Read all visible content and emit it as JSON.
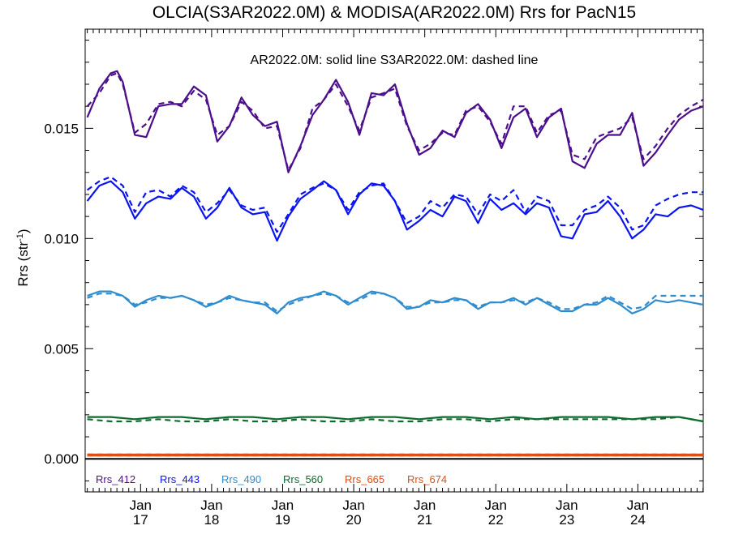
{
  "chart_data": {
    "type": "line",
    "title": "OLCIA(S3AR2022.0M) & MODISA(AR2022.0M)  Rrs for PacN15",
    "annotation": "AR2022.0M: solid line   S3AR2022.0M: dashed line",
    "ylabel": "Rrs (str",
    "ylabel_sup": "-1",
    "ylabel_close": ")",
    "xlabel": "",
    "x_unit": "year (20xx, monthly)",
    "xlim": [
      2016.22,
      2024.92
    ],
    "ylim": [
      -0.0015,
      0.0195
    ],
    "yticks": [
      0.0,
      0.005,
      0.01,
      0.015
    ],
    "ytick_labels": [
      "0.000",
      "0.005",
      "0.010",
      "0.015"
    ],
    "xticks": [
      {
        "x": 2017,
        "month": "Jan",
        "year": "17"
      },
      {
        "x": 2018,
        "month": "Jan",
        "year": "18"
      },
      {
        "x": 2019,
        "month": "Jan",
        "year": "19"
      },
      {
        "x": 2020,
        "month": "Jan",
        "year": "20"
      },
      {
        "x": 2021,
        "month": "Jan",
        "year": "21"
      },
      {
        "x": 2022,
        "month": "Jan",
        "year": "22"
      },
      {
        "x": 2023,
        "month": "Jan",
        "year": "23"
      },
      {
        "x": 2024,
        "month": "Jan",
        "year": "24"
      }
    ],
    "grid": false,
    "legend_position": "bottom-left",
    "series": [
      {
        "name": "Rrs_412",
        "color": "#4b0f8c",
        "solid": {
          "x": [
            2016.25,
            2016.42,
            2016.58,
            2016.67,
            2016.75,
            2016.92,
            2017.08,
            2017.25,
            2017.42,
            2017.58,
            2017.75,
            2017.92,
            2018.08,
            2018.25,
            2018.42,
            2018.58,
            2018.75,
            2018.92,
            2019.08,
            2019.25,
            2019.42,
            2019.58,
            2019.75,
            2019.92,
            2020.08,
            2020.25,
            2020.42,
            2020.58,
            2020.75,
            2020.92,
            2021.08,
            2021.25,
            2021.42,
            2021.58,
            2021.75,
            2021.92,
            2022.08,
            2022.25,
            2022.42,
            2022.58,
            2022.75,
            2022.92,
            2023.08,
            2023.25,
            2023.42,
            2023.58,
            2023.75,
            2023.92,
            2024.08,
            2024.25,
            2024.42,
            2024.58,
            2024.75,
            2024.92
          ],
          "y": [
            0.0155,
            0.0168,
            0.0175,
            0.0176,
            0.0171,
            0.0147,
            0.0146,
            0.016,
            0.0161,
            0.0161,
            0.0169,
            0.0165,
            0.0144,
            0.0151,
            0.0164,
            0.0156,
            0.0151,
            0.0153,
            0.013,
            0.0142,
            0.0156,
            0.0163,
            0.0172,
            0.0162,
            0.0147,
            0.0166,
            0.0165,
            0.017,
            0.0152,
            0.0138,
            0.0141,
            0.0149,
            0.0146,
            0.0157,
            0.0161,
            0.0154,
            0.0141,
            0.0155,
            0.0159,
            0.0146,
            0.0155,
            0.0159,
            0.0135,
            0.0132,
            0.0143,
            0.0147,
            0.0147,
            0.0157,
            0.0133,
            0.0139,
            0.0147,
            0.0154,
            0.0158,
            0.016
          ]
        },
        "dashed": {
          "x": [
            2016.25,
            2016.42,
            2016.58,
            2016.67,
            2016.75,
            2016.92,
            2017.08,
            2017.25,
            2017.42,
            2017.58,
            2017.75,
            2017.92,
            2018.08,
            2018.25,
            2018.42,
            2018.58,
            2018.75,
            2018.92,
            2019.08,
            2019.25,
            2019.42,
            2019.58,
            2019.75,
            2019.92,
            2020.08,
            2020.25,
            2020.42,
            2020.58,
            2020.75,
            2020.92,
            2021.08,
            2021.25,
            2021.42,
            2021.58,
            2021.75,
            2021.92,
            2022.08,
            2022.25,
            2022.42,
            2022.58,
            2022.75,
            2022.92,
            2023.08,
            2023.25,
            2023.42,
            2023.58,
            2023.75,
            2023.92,
            2024.08,
            2024.25,
            2024.42,
            2024.58,
            2024.75,
            2024.92
          ],
          "y": [
            0.016,
            0.0166,
            0.0174,
            0.0175,
            0.017,
            0.0148,
            0.0152,
            0.0161,
            0.0162,
            0.016,
            0.0167,
            0.0163,
            0.0147,
            0.0151,
            0.0162,
            0.0158,
            0.015,
            0.0151,
            0.0131,
            0.0141,
            0.0159,
            0.0163,
            0.017,
            0.016,
            0.0149,
            0.0164,
            0.0166,
            0.0168,
            0.0151,
            0.014,
            0.0143,
            0.0148,
            0.0147,
            0.0158,
            0.016,
            0.0153,
            0.0143,
            0.016,
            0.016,
            0.0148,
            0.0156,
            0.0158,
            0.0138,
            0.0136,
            0.0146,
            0.0148,
            0.015,
            0.0155,
            0.0136,
            0.0142,
            0.015,
            0.0156,
            0.016,
            0.0163
          ]
        }
      },
      {
        "name": "Rrs_443",
        "color": "#0a14f0",
        "solid": {
          "x": [
            2016.25,
            2016.42,
            2016.58,
            2016.75,
            2016.92,
            2017.08,
            2017.25,
            2017.42,
            2017.58,
            2017.75,
            2017.92,
            2018.08,
            2018.25,
            2018.42,
            2018.58,
            2018.75,
            2018.92,
            2019.08,
            2019.25,
            2019.42,
            2019.58,
            2019.75,
            2019.92,
            2020.08,
            2020.25,
            2020.42,
            2020.58,
            2020.75,
            2020.92,
            2021.08,
            2021.25,
            2021.42,
            2021.58,
            2021.75,
            2021.92,
            2022.08,
            2022.25,
            2022.42,
            2022.58,
            2022.75,
            2022.92,
            2023.08,
            2023.25,
            2023.42,
            2023.58,
            2023.75,
            2023.92,
            2024.08,
            2024.25,
            2024.42,
            2024.58,
            2024.75,
            2024.92
          ],
          "y": [
            0.0117,
            0.0124,
            0.0126,
            0.0121,
            0.0109,
            0.0116,
            0.0119,
            0.0118,
            0.0123,
            0.0119,
            0.0109,
            0.0114,
            0.0123,
            0.0114,
            0.0111,
            0.0112,
            0.0099,
            0.011,
            0.0118,
            0.0122,
            0.0126,
            0.0122,
            0.0111,
            0.012,
            0.0125,
            0.0124,
            0.0117,
            0.0104,
            0.0108,
            0.0113,
            0.011,
            0.0119,
            0.0117,
            0.0107,
            0.0118,
            0.0113,
            0.0116,
            0.0111,
            0.0116,
            0.0114,
            0.0101,
            0.01,
            0.0111,
            0.0112,
            0.0117,
            0.011,
            0.01,
            0.0104,
            0.0111,
            0.011,
            0.0114,
            0.0115,
            0.0113
          ]
        },
        "dashed": {
          "x": [
            2016.25,
            2016.42,
            2016.58,
            2016.75,
            2016.92,
            2017.08,
            2017.25,
            2017.42,
            2017.58,
            2017.75,
            2017.92,
            2018.08,
            2018.25,
            2018.42,
            2018.58,
            2018.75,
            2018.92,
            2019.08,
            2019.25,
            2019.42,
            2019.58,
            2019.75,
            2019.92,
            2020.08,
            2020.25,
            2020.42,
            2020.58,
            2020.75,
            2020.92,
            2021.08,
            2021.25,
            2021.42,
            2021.58,
            2021.75,
            2021.92,
            2022.08,
            2022.25,
            2022.42,
            2022.58,
            2022.75,
            2022.92,
            2023.08,
            2023.25,
            2023.42,
            2023.58,
            2023.75,
            2023.92,
            2024.08,
            2024.25,
            2024.42,
            2024.58,
            2024.75,
            2024.92
          ],
          "y": [
            0.0122,
            0.0126,
            0.0128,
            0.0124,
            0.0112,
            0.0121,
            0.0122,
            0.0119,
            0.0124,
            0.0121,
            0.0112,
            0.0116,
            0.0122,
            0.0115,
            0.0113,
            0.0114,
            0.0103,
            0.0111,
            0.012,
            0.0123,
            0.0125,
            0.0122,
            0.0113,
            0.0121,
            0.0124,
            0.0125,
            0.0117,
            0.0107,
            0.011,
            0.0117,
            0.0114,
            0.012,
            0.0119,
            0.0111,
            0.012,
            0.0117,
            0.0122,
            0.0112,
            0.0119,
            0.0117,
            0.0106,
            0.0106,
            0.0113,
            0.0115,
            0.0119,
            0.0114,
            0.0104,
            0.0106,
            0.0115,
            0.0118,
            0.012,
            0.0121,
            0.0121
          ]
        }
      },
      {
        "name": "Rrs_490",
        "color": "#2e8ccf",
        "solid": {
          "x": [
            2016.25,
            2016.42,
            2016.58,
            2016.75,
            2016.92,
            2017.08,
            2017.25,
            2017.42,
            2017.58,
            2017.75,
            2017.92,
            2018.08,
            2018.25,
            2018.42,
            2018.58,
            2018.75,
            2018.92,
            2019.08,
            2019.25,
            2019.42,
            2019.58,
            2019.75,
            2019.92,
            2020.08,
            2020.25,
            2020.42,
            2020.58,
            2020.75,
            2020.92,
            2021.08,
            2021.25,
            2021.42,
            2021.58,
            2021.75,
            2021.92,
            2022.08,
            2022.25,
            2022.42,
            2022.58,
            2022.75,
            2022.92,
            2023.08,
            2023.25,
            2023.42,
            2023.58,
            2023.75,
            2023.92,
            2024.08,
            2024.25,
            2024.42,
            2024.58,
            2024.75,
            2024.92
          ],
          "y": [
            0.0074,
            0.0076,
            0.0076,
            0.0074,
            0.0069,
            0.0072,
            0.0074,
            0.0073,
            0.0074,
            0.0072,
            0.0069,
            0.0071,
            0.0074,
            0.0072,
            0.0071,
            0.007,
            0.0066,
            0.0071,
            0.0073,
            0.0074,
            0.0076,
            0.0074,
            0.007,
            0.0073,
            0.0076,
            0.0075,
            0.0073,
            0.0068,
            0.0069,
            0.0072,
            0.0071,
            0.0073,
            0.0072,
            0.0068,
            0.0071,
            0.0071,
            0.0073,
            0.007,
            0.0073,
            0.007,
            0.0067,
            0.0067,
            0.007,
            0.007,
            0.0073,
            0.007,
            0.0066,
            0.0068,
            0.0072,
            0.0071,
            0.0072,
            0.0071,
            0.007
          ]
        },
        "dashed": {
          "x": [
            2016.25,
            2016.42,
            2016.58,
            2016.75,
            2016.92,
            2017.08,
            2017.25,
            2017.42,
            2017.58,
            2017.75,
            2017.92,
            2018.08,
            2018.25,
            2018.42,
            2018.58,
            2018.75,
            2018.92,
            2019.08,
            2019.25,
            2019.42,
            2019.58,
            2019.75,
            2019.92,
            2020.08,
            2020.25,
            2020.42,
            2020.58,
            2020.75,
            2020.92,
            2021.08,
            2021.25,
            2021.42,
            2021.58,
            2021.75,
            2021.92,
            2022.08,
            2022.25,
            2022.42,
            2022.58,
            2022.75,
            2022.92,
            2023.08,
            2023.25,
            2023.42,
            2023.58,
            2023.75,
            2023.92,
            2024.08,
            2024.25,
            2024.42,
            2024.58,
            2024.75,
            2024.92
          ],
          "y": [
            0.0073,
            0.0075,
            0.0075,
            0.0074,
            0.007,
            0.0071,
            0.0073,
            0.0073,
            0.0074,
            0.0072,
            0.007,
            0.0071,
            0.0073,
            0.0072,
            0.0071,
            0.0071,
            0.0067,
            0.007,
            0.0072,
            0.0074,
            0.0075,
            0.0074,
            0.0071,
            0.0072,
            0.0075,
            0.0075,
            0.0073,
            0.0069,
            0.0069,
            0.0071,
            0.0071,
            0.0072,
            0.0072,
            0.0069,
            0.0071,
            0.0071,
            0.0072,
            0.0071,
            0.0073,
            0.0071,
            0.0068,
            0.0068,
            0.007,
            0.0071,
            0.0074,
            0.0071,
            0.0068,
            0.0069,
            0.0074,
            0.0074,
            0.0074,
            0.0074,
            0.0074
          ]
        }
      },
      {
        "name": "Rrs_560",
        "color": "#0d6b2e",
        "solid": {
          "x": [
            2016.25,
            2016.58,
            2016.92,
            2017.25,
            2017.58,
            2017.92,
            2018.25,
            2018.58,
            2018.92,
            2019.25,
            2019.58,
            2019.92,
            2020.25,
            2020.58,
            2020.92,
            2021.25,
            2021.58,
            2021.92,
            2022.25,
            2022.58,
            2022.92,
            2023.25,
            2023.58,
            2023.92,
            2024.25,
            2024.58,
            2024.92
          ],
          "y": [
            0.0019,
            0.0019,
            0.0018,
            0.0019,
            0.0019,
            0.0018,
            0.0019,
            0.0019,
            0.0018,
            0.0019,
            0.0019,
            0.0018,
            0.0019,
            0.0019,
            0.0018,
            0.0019,
            0.0019,
            0.0018,
            0.0019,
            0.0018,
            0.0019,
            0.0019,
            0.0019,
            0.0018,
            0.0019,
            0.0019,
            0.0017
          ]
        },
        "dashed": {
          "x": [
            2016.25,
            2016.58,
            2016.92,
            2017.25,
            2017.58,
            2017.92,
            2018.25,
            2018.58,
            2018.92,
            2019.25,
            2019.58,
            2019.92,
            2020.25,
            2020.58,
            2020.92,
            2021.25,
            2021.58,
            2021.92,
            2022.25,
            2022.58,
            2022.92,
            2023.25,
            2023.58,
            2023.92,
            2024.25,
            2024.58,
            2024.92
          ],
          "y": [
            0.0018,
            0.0017,
            0.0017,
            0.0018,
            0.0017,
            0.0017,
            0.0018,
            0.0017,
            0.0017,
            0.0018,
            0.0017,
            0.0017,
            0.0018,
            0.0017,
            0.0017,
            0.0018,
            0.0018,
            0.0017,
            0.0018,
            0.0018,
            0.0018,
            0.0018,
            0.0018,
            0.0018,
            0.0018,
            0.0019,
            0.0017
          ]
        }
      },
      {
        "name": "Rrs_665",
        "color": "#e04a0e",
        "solid": {
          "x": [
            2016.25,
            2017.0,
            2018.0,
            2019.0,
            2020.0,
            2021.0,
            2022.0,
            2023.0,
            2024.0,
            2024.92
          ],
          "y": [
            0.0002,
            0.0002,
            0.0002,
            0.0002,
            0.0002,
            0.0002,
            0.0002,
            0.0002,
            0.0002,
            0.0002
          ]
        },
        "dashed": {
          "x": [
            2016.25,
            2017.0,
            2018.0,
            2019.0,
            2020.0,
            2021.0,
            2022.0,
            2023.0,
            2024.0,
            2024.92
          ],
          "y": [
            0.0002,
            0.0002,
            0.0002,
            0.0002,
            0.0002,
            0.0002,
            0.0002,
            0.0002,
            0.0002,
            0.0002
          ]
        }
      },
      {
        "name": "Rrs_674",
        "color": "#d9531a",
        "solid": {
          "x": [
            2016.25,
            2017.0,
            2018.0,
            2019.0,
            2020.0,
            2021.0,
            2022.0,
            2023.0,
            2024.0,
            2024.92
          ],
          "y": [
            0.00015,
            0.00015,
            0.00015,
            0.00015,
            0.00015,
            0.00015,
            0.00015,
            0.00015,
            0.00015,
            0.00015
          ]
        },
        "dashed": {
          "x": [
            2016.25,
            2017.0,
            2018.0,
            2019.0,
            2020.0,
            2021.0,
            2022.0,
            2023.0,
            2024.0,
            2024.92
          ],
          "y": [
            0.00015,
            0.00015,
            0.00015,
            0.00015,
            0.00015,
            0.00015,
            0.00015,
            0.00015,
            0.00015,
            0.00015
          ]
        }
      }
    ]
  }
}
